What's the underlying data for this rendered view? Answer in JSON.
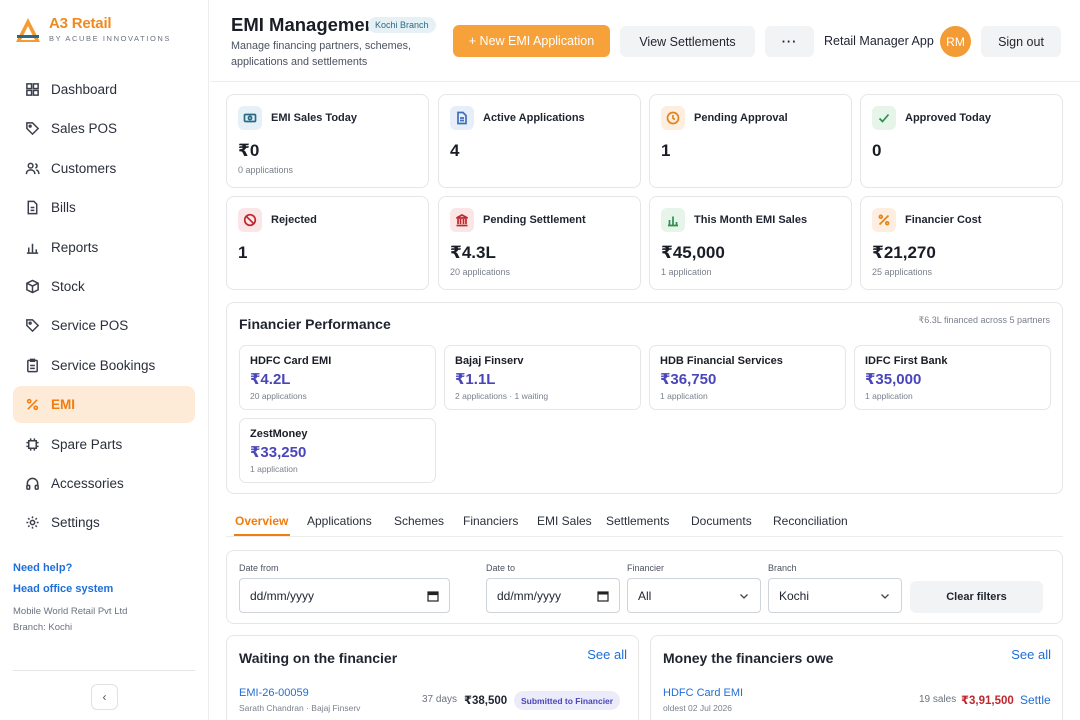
{
  "brand": {
    "name": "A3 Retail",
    "tagline": "BY ACUBE INNOVATIONS"
  },
  "sidebar": {
    "items": [
      {
        "label": "Dashboard",
        "icon": "grid-icon"
      },
      {
        "label": "Sales POS",
        "icon": "tag-icon"
      },
      {
        "label": "Customers",
        "icon": "users-icon"
      },
      {
        "label": "Bills",
        "icon": "file-icon"
      },
      {
        "label": "Reports",
        "icon": "bar-chart-icon"
      },
      {
        "label": "Stock",
        "icon": "box-icon"
      },
      {
        "label": "Service POS",
        "icon": "tag-icon"
      },
      {
        "label": "Service Bookings",
        "icon": "clipboard-icon"
      },
      {
        "label": "EMI",
        "icon": "percent-icon",
        "active": true
      },
      {
        "label": "Spare Parts",
        "icon": "chip-icon"
      },
      {
        "label": "Accessories",
        "icon": "headphones-icon"
      },
      {
        "label": "Settings",
        "icon": "gear-icon"
      }
    ],
    "help": {
      "need_help": "Need help?",
      "head_office": "Head office system",
      "company": "Mobile World Retail Pvt Ltd",
      "branch": "Branch: Kochi"
    },
    "collapse_glyph": "‹"
  },
  "header": {
    "title": "EMI Management",
    "branch_badge": "Kochi Branch",
    "subtitle": "Manage financing partners, schemes, applications and settlements",
    "new_button": "+ New EMI Application",
    "settlements_button": "View Settlements",
    "more_button": "···",
    "app_label": "Retail Manager App",
    "avatar": "RM",
    "signout_button": "Sign out"
  },
  "stats": [
    {
      "label": "EMI Sales Today",
      "value": "₹0",
      "sub": "0 applications",
      "icon": "cash-icon",
      "chip": "#e5f0f7",
      "stroke": "#2a6a86"
    },
    {
      "label": "Active Applications",
      "value": "4",
      "sub": "",
      "icon": "document-icon",
      "chip": "#e6eef9",
      "stroke": "#3f6fb5"
    },
    {
      "label": "Pending Approval",
      "value": "1",
      "sub": "",
      "icon": "clock-icon",
      "chip": "#fdeee0",
      "stroke": "#e0851c"
    },
    {
      "label": "Approved Today",
      "value": "0",
      "sub": "",
      "icon": "check-icon",
      "chip": "#e6f4ea",
      "stroke": "#2f8f4e"
    },
    {
      "label": "Rejected",
      "value": "1",
      "sub": "",
      "icon": "ban-icon",
      "chip": "#fbe6e7",
      "stroke": "#c0262d"
    },
    {
      "label": "Pending Settlement",
      "value": "₹4.3L",
      "sub": "20 applications",
      "icon": "bank-icon",
      "chip": "#fbe6e7",
      "stroke": "#c0262d"
    },
    {
      "label": "This Month EMI Sales",
      "value": "₹45,000",
      "sub": "1 application",
      "icon": "bar-chart-icon",
      "chip": "#e6f4ea",
      "stroke": "#2f8f4e"
    },
    {
      "label": "Financier Cost",
      "value": "₹21,270",
      "sub": "25 applications",
      "icon": "percent-icon",
      "chip": "#fdeee0",
      "stroke": "#e0851c"
    }
  ],
  "performance": {
    "title": "Financier Performance",
    "note": "₹6.3L financed across 5 partners",
    "financiers": [
      {
        "name": "HDFC Card EMI",
        "value": "₹4.2L",
        "sub": "20 applications"
      },
      {
        "name": "Bajaj Finserv",
        "value": "₹1.1L",
        "sub": "2 applications · 1 waiting"
      },
      {
        "name": "HDB Financial Services",
        "value": "₹36,750",
        "sub": "1 application"
      },
      {
        "name": "IDFC First Bank",
        "value": "₹35,000",
        "sub": "1 application"
      },
      {
        "name": "ZestMoney",
        "value": "₹33,250",
        "sub": "1 application"
      }
    ]
  },
  "tabs": [
    "Overview",
    "Applications",
    "Schemes",
    "Financiers",
    "EMI Sales",
    "Settlements",
    "Documents",
    "Reconciliation"
  ],
  "filters": {
    "date_from_label": "Date from",
    "date_from_value": "dd/mm/yyyy",
    "date_to_label": "Date to",
    "date_to_value": "dd/mm/yyyy",
    "financier_label": "Financier",
    "financier_value": "All",
    "branch_label": "Branch",
    "branch_value": "Kochi",
    "clear_button": "Clear filters"
  },
  "waiting": {
    "title": "Waiting on the financier",
    "see_all": "See all",
    "row": {
      "id": "EMI-26-00059",
      "sub": "Sarath Chandran · Bajaj Finserv",
      "days": "37 days",
      "amount": "₹38,500",
      "status": "Submitted to Financier"
    }
  },
  "owed": {
    "title": "Money the financiers owe",
    "see_all": "See all",
    "row": {
      "name": "HDFC Card EMI",
      "sub": "oldest 02 Jul 2026",
      "sales": "19 sales",
      "amount": "₹3,91,500",
      "action": "Settle"
    }
  }
}
